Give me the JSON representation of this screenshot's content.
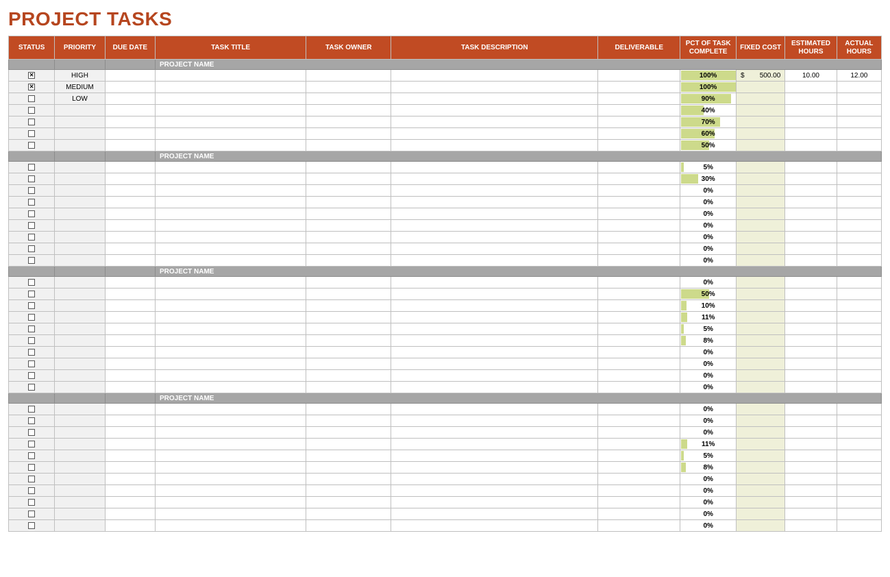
{
  "title": "PROJECT TASKS",
  "colors": {
    "title": "#b6461f",
    "header_bg": "#c14b23",
    "header_text": "#ffffff",
    "section_bg": "#a6a6a6",
    "section_text": "#ffffff",
    "border": "#bfbfbf",
    "shaded_cell": "#f1f1f1",
    "cost_cell": "#eff0d9",
    "pct_bar": "#cdda8b"
  },
  "columns": [
    {
      "key": "status",
      "label": "STATUS"
    },
    {
      "key": "priority",
      "label": "PRIORITY"
    },
    {
      "key": "due_date",
      "label": "DUE DATE"
    },
    {
      "key": "task_title",
      "label": "TASK TITLE"
    },
    {
      "key": "task_owner",
      "label": "TASK OWNER"
    },
    {
      "key": "task_desc",
      "label": "TASK DESCRIPTION"
    },
    {
      "key": "deliverable",
      "label": "DELIVERABLE"
    },
    {
      "key": "pct_complete",
      "label": "PCT OF TASK COMPLETE"
    },
    {
      "key": "fixed_cost",
      "label": "FIXED COST"
    },
    {
      "key": "est_hours",
      "label": "ESTIMATED HOURS"
    },
    {
      "key": "act_hours",
      "label": "ACTUAL HOURS"
    }
  ],
  "section_label": "PROJECT NAME",
  "sections": [
    {
      "rows": [
        {
          "checked": true,
          "priority": "HIGH",
          "pct": 100,
          "fixed_cost": "500.00",
          "est_hours": "10.00",
          "act_hours": "12.00"
        },
        {
          "checked": true,
          "priority": "MEDIUM",
          "pct": 100
        },
        {
          "checked": false,
          "priority": "LOW",
          "pct": 90
        },
        {
          "checked": false,
          "pct": 40
        },
        {
          "checked": false,
          "pct": 70
        },
        {
          "checked": false,
          "pct": 60
        },
        {
          "checked": false,
          "pct": 50
        }
      ]
    },
    {
      "rows": [
        {
          "checked": false,
          "pct": 5
        },
        {
          "checked": false,
          "pct": 30
        },
        {
          "checked": false,
          "pct": 0
        },
        {
          "checked": false,
          "pct": 0
        },
        {
          "checked": false,
          "pct": 0
        },
        {
          "checked": false,
          "pct": 0
        },
        {
          "checked": false,
          "pct": 0
        },
        {
          "checked": false,
          "pct": 0
        },
        {
          "checked": false,
          "pct": 0
        }
      ]
    },
    {
      "rows": [
        {
          "checked": false,
          "pct": 0
        },
        {
          "checked": false,
          "pct": 50
        },
        {
          "checked": false,
          "pct": 10
        },
        {
          "checked": false,
          "pct": 11
        },
        {
          "checked": false,
          "pct": 5
        },
        {
          "checked": false,
          "pct": 8
        },
        {
          "checked": false,
          "pct": 0
        },
        {
          "checked": false,
          "pct": 0
        },
        {
          "checked": false,
          "pct": 0
        },
        {
          "checked": false,
          "pct": 0
        }
      ]
    },
    {
      "rows": [
        {
          "checked": false,
          "pct": 0
        },
        {
          "checked": false,
          "pct": 0
        },
        {
          "checked": false,
          "pct": 0
        },
        {
          "checked": false,
          "pct": 11
        },
        {
          "checked": false,
          "pct": 5
        },
        {
          "checked": false,
          "pct": 8
        },
        {
          "checked": false,
          "pct": 0
        },
        {
          "checked": false,
          "pct": 0
        },
        {
          "checked": false,
          "pct": 0
        },
        {
          "checked": false,
          "pct": 0
        },
        {
          "checked": false,
          "pct": 0
        }
      ]
    }
  ]
}
